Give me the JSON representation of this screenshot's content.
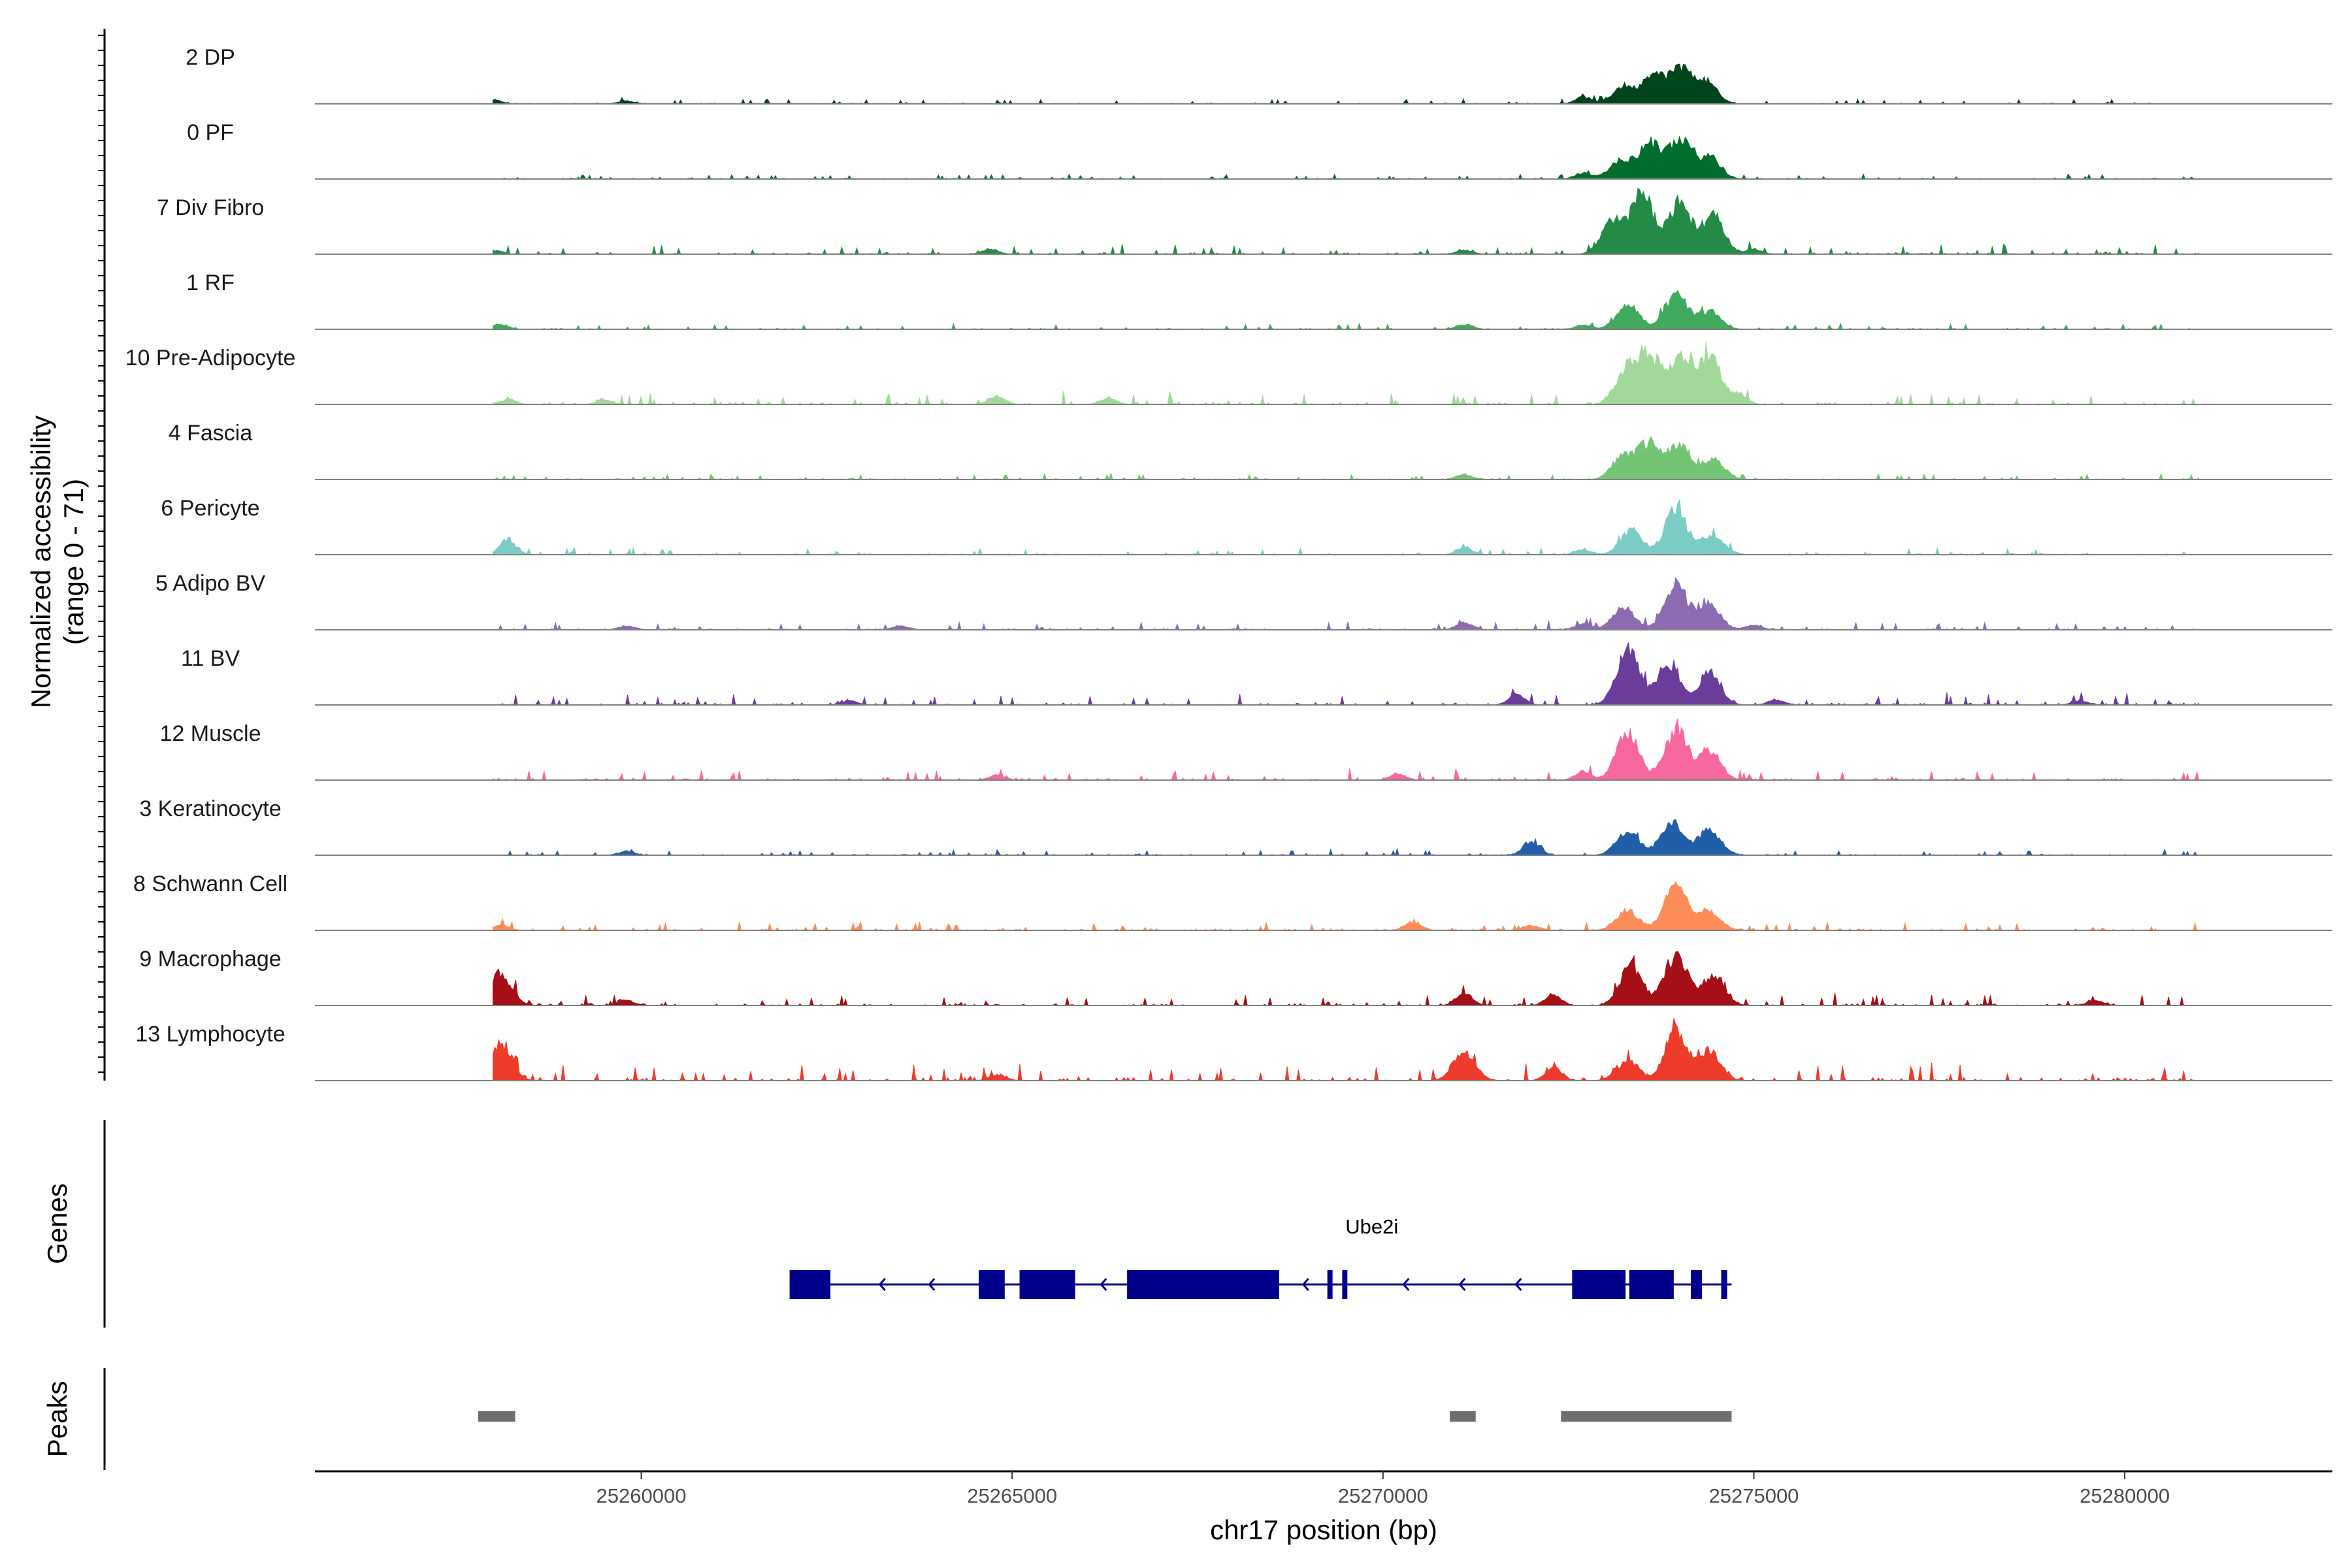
{
  "chart_data": {
    "type": "area",
    "chromosome": "chr17",
    "xlabel": "chr17 position (bp)",
    "xlim": [
      25255600,
      25282800
    ],
    "xticks": [
      25260000,
      25265000,
      25270000,
      25275000,
      25280000
    ],
    "xtick_labels": [
      "25260000",
      "25265000",
      "25270000",
      "25275000",
      "25280000"
    ],
    "ylabel_line1": "Normalized accessibility",
    "ylabel_line2": "(range 0 - 71)",
    "y_range": [
      0,
      71
    ],
    "tracks": [
      {
        "name": "2 DP",
        "color": "#00441B",
        "peaks": [
          [
            25273250,
            18
          ],
          [
            25273650,
            26
          ],
          [
            25274000,
            33
          ],
          [
            25274350,
            22
          ],
          [
            25272700,
            7
          ],
          [
            25258000,
            4
          ],
          [
            25259800,
            3
          ]
        ],
        "noise": 0.6
      },
      {
        "name": "0 PF",
        "color": "#006D2C",
        "peaks": [
          [
            25273200,
            18
          ],
          [
            25273600,
            34
          ],
          [
            25274000,
            38
          ],
          [
            25274400,
            22
          ],
          [
            25272700,
            6
          ]
        ],
        "noise": 0.6
      },
      {
        "name": "7 Div Fibro",
        "color": "#238B45",
        "peaks": [
          [
            25273100,
            32
          ],
          [
            25273500,
            60
          ],
          [
            25274000,
            50
          ],
          [
            25274450,
            38
          ],
          [
            25275000,
            5
          ],
          [
            25258000,
            4
          ],
          [
            25264700,
            5
          ],
          [
            25271100,
            4
          ]
        ],
        "noise": 1.2
      },
      {
        "name": "1 RF",
        "color": "#41AB5D",
        "peaks": [
          [
            25273300,
            25
          ],
          [
            25273950,
            34
          ],
          [
            25274400,
            18
          ],
          [
            25272700,
            4
          ],
          [
            25258100,
            5
          ],
          [
            25271100,
            5
          ]
        ],
        "noise": 0.7
      },
      {
        "name": "10 Pre-Adipocyte",
        "color": "#A1D99B",
        "peaks": [
          [
            25273300,
            38
          ],
          [
            25273600,
            45
          ],
          [
            25274000,
            45
          ],
          [
            25274400,
            48
          ],
          [
            25274800,
            10
          ],
          [
            25264800,
            8
          ],
          [
            25266300,
            6
          ],
          [
            25258200,
            5
          ],
          [
            25259500,
            4
          ]
        ],
        "noise": 1.5
      },
      {
        "name": "4 Fascia",
        "color": "#74C476",
        "peaks": [
          [
            25273250,
            25
          ],
          [
            25273600,
            35
          ],
          [
            25274000,
            35
          ],
          [
            25274450,
            20
          ],
          [
            25271100,
            5
          ]
        ],
        "noise": 0.7
      },
      {
        "name": "6 Pericyte",
        "color": "#7BCCC4",
        "peaks": [
          [
            25273350,
            24
          ],
          [
            25273950,
            45
          ],
          [
            25274450,
            20
          ],
          [
            25258200,
            15
          ],
          [
            25271100,
            7
          ],
          [
            25272700,
            5
          ]
        ],
        "noise": 0.8
      },
      {
        "name": "5 Adipo BV",
        "color": "#8C6BB1",
        "peaks": [
          [
            25273250,
            22
          ],
          [
            25273950,
            45
          ],
          [
            25274400,
            25
          ],
          [
            25271100,
            7
          ],
          [
            25272700,
            6
          ],
          [
            25275000,
            5
          ],
          [
            25259800,
            4
          ],
          [
            25263500,
            4
          ]
        ],
        "noise": 1.0
      },
      {
        "name": "11 BV",
        "color": "#6A3D9A",
        "peaks": [
          [
            25273300,
            55
          ],
          [
            25273850,
            42
          ],
          [
            25274400,
            32
          ],
          [
            25271800,
            10
          ],
          [
            25275300,
            5
          ],
          [
            25262800,
            4
          ],
          [
            25279400,
            4
          ]
        ],
        "noise": 1.4
      },
      {
        "name": "12 Muscle",
        "color": "#F768A1",
        "peaks": [
          [
            25273300,
            48
          ],
          [
            25273950,
            50
          ],
          [
            25274400,
            30
          ],
          [
            25272700,
            8
          ],
          [
            25264800,
            5
          ],
          [
            25270200,
            6
          ],
          [
            25257800,
            4
          ]
        ],
        "noise": 1.3
      },
      {
        "name": "3 Keratinocyte",
        "color": "#225EA8",
        "peaks": [
          [
            25272000,
            14
          ],
          [
            25273300,
            24
          ],
          [
            25273900,
            35
          ],
          [
            25274400,
            25
          ],
          [
            25259800,
            4
          ]
        ],
        "noise": 0.7
      },
      {
        "name": "8 Schwann Cell",
        "color": "#FC8D59",
        "peaks": [
          [
            25273300,
            20
          ],
          [
            25273950,
            45
          ],
          [
            25274400,
            20
          ],
          [
            25270400,
            8
          ],
          [
            25272000,
            5
          ],
          [
            25258100,
            5
          ]
        ],
        "noise": 1.0
      },
      {
        "name": "9 Macrophage",
        "color": "#A50F15",
        "peaks": [
          [
            25258100,
            32
          ],
          [
            25273350,
            40
          ],
          [
            25273950,
            52
          ],
          [
            25274450,
            30
          ],
          [
            25271100,
            12
          ],
          [
            25272300,
            10
          ],
          [
            25259800,
            5
          ],
          [
            25279600,
            5
          ]
        ],
        "noise": 1.4
      },
      {
        "name": "13 Lymphocyte",
        "color": "#EF3B2C",
        "peaks": [
          [
            25258100,
            38
          ],
          [
            25271100,
            30
          ],
          [
            25272300,
            14
          ],
          [
            25273950,
            50
          ],
          [
            25274400,
            30
          ],
          [
            25273300,
            20
          ],
          [
            25264800,
            6
          ],
          [
            25257200,
            6
          ]
        ],
        "noise": 2.2
      }
    ],
    "genes": {
      "title": "Genes",
      "name": "Ube2i",
      "strand": "-",
      "start": 25262000,
      "end": 25274700,
      "exons": [
        [
          25262000,
          25262550
        ],
        [
          25264550,
          25264900
        ],
        [
          25265100,
          25265850
        ],
        [
          25266550,
          25268600
        ],
        [
          25269250,
          25269320
        ],
        [
          25269450,
          25269520
        ],
        [
          25272550,
          25273270
        ],
        [
          25273320,
          25273920
        ],
        [
          25274150,
          25274300
        ],
        [
          25274560,
          25274640
        ]
      ],
      "color": "#00008B"
    },
    "peaks_track": {
      "title": "Peaks",
      "regions": [
        [
          25257800,
          25258300
        ],
        [
          25270900,
          25271250
        ],
        [
          25272400,
          25274700
        ]
      ],
      "color": "#6E6E6E"
    }
  }
}
